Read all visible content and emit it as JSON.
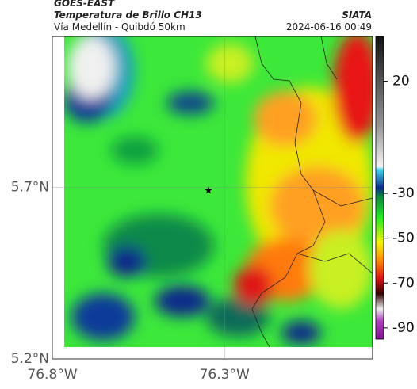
{
  "header": {
    "title": "GOES-EAST",
    "subtitle": "Temperatura de Brillo CH13",
    "region": "Vía Medellín - Quibdó 50km",
    "source": "SIATA",
    "timestamp": "2024-06-16 00:49"
  },
  "map": {
    "lat_lim": [
      5.2,
      6.14
    ],
    "lon_lim": [
      -76.8,
      -75.87
    ],
    "lat_ticks": [
      {
        "value": 5.2,
        "label": "5.2°N"
      },
      {
        "value": 5.7,
        "label": "5.7°N"
      }
    ],
    "lon_ticks": [
      {
        "value": -76.8,
        "label": "76.8°W"
      },
      {
        "value": -76.3,
        "label": "76.3°W"
      }
    ]
  },
  "colorbar": {
    "lim": [
      40,
      -95
    ],
    "ticks": [
      20,
      -30,
      -50,
      -70,
      -90
    ]
  }
}
